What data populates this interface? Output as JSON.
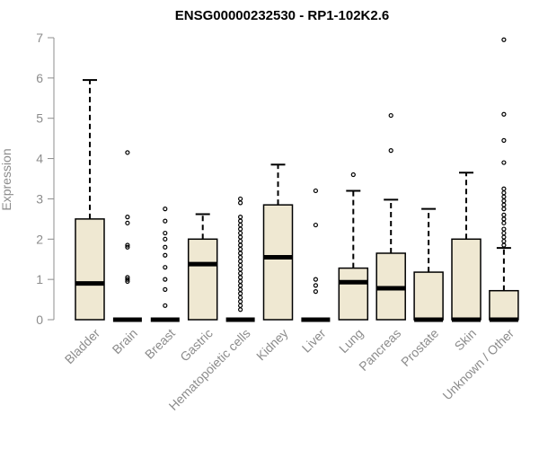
{
  "chart_data": {
    "type": "boxplot",
    "title": "ENSG00000232530 - RP1-102K2.6",
    "xlabel": "",
    "ylabel": "Expression",
    "ylim": [
      0,
      7
    ],
    "yticks": [
      "0",
      "1",
      "2",
      "3",
      "4",
      "5",
      "6",
      "7"
    ],
    "grid": false,
    "colors": {
      "box_fill": "#efe8d2",
      "median": "#000000",
      "axis": "#8c8c8c",
      "title": "#000000"
    },
    "categories": [
      "Bladder",
      "Brain",
      "Breast",
      "Gastric",
      "Hematopoietic cells",
      "Kidney",
      "Liver",
      "Lung",
      "Pancreas",
      "Prostate",
      "Skin",
      "Unknown / Other"
    ],
    "boxes": [
      {
        "min": 0,
        "q1": 0,
        "median": 0.9,
        "q3": 2.5,
        "max": 5.95,
        "outliers": []
      },
      {
        "min": 0,
        "q1": 0,
        "median": 0,
        "q3": 0,
        "max": 0,
        "outliers": [
          0.95,
          1.0,
          1.05,
          1.8,
          1.85,
          2.4,
          2.55,
          4.15
        ]
      },
      {
        "min": 0,
        "q1": 0,
        "median": 0,
        "q3": 0,
        "max": 0,
        "outliers": [
          0.35,
          0.75,
          1.0,
          1.3,
          1.6,
          1.8,
          2.0,
          2.15,
          2.45,
          2.75
        ]
      },
      {
        "min": 0,
        "q1": 0,
        "median": 1.38,
        "q3": 2.0,
        "max": 2.62,
        "outliers": []
      },
      {
        "min": 0,
        "q1": 0,
        "median": 0,
        "q3": 0,
        "max": 0,
        "outliers": [
          0.25,
          0.35,
          0.45,
          0.55,
          0.65,
          0.75,
          0.85,
          0.95,
          1.05,
          1.15,
          1.25,
          1.35,
          1.45,
          1.55,
          1.65,
          1.75,
          1.85,
          1.95,
          2.05,
          2.15,
          2.25,
          2.35,
          2.45,
          2.55,
          2.9,
          3.0
        ]
      },
      {
        "min": 0,
        "q1": 0,
        "median": 1.55,
        "q3": 2.85,
        "max": 3.85,
        "outliers": []
      },
      {
        "min": 0,
        "q1": 0,
        "median": 0,
        "q3": 0,
        "max": 0,
        "outliers": [
          0.7,
          0.85,
          1.0,
          2.35,
          3.2
        ]
      },
      {
        "min": 0,
        "q1": 0.0,
        "median": 0.93,
        "q3": 1.28,
        "max": 3.2,
        "outliers": [
          3.6
        ]
      },
      {
        "min": 0,
        "q1": 0.0,
        "median": 0.78,
        "q3": 1.65,
        "max": 2.98,
        "outliers": [
          4.2,
          5.07
        ]
      },
      {
        "min": 0,
        "q1": 0,
        "median": 0,
        "q3": 1.18,
        "max": 2.75,
        "outliers": []
      },
      {
        "min": 0,
        "q1": 0,
        "median": 0,
        "q3": 2.0,
        "max": 3.65,
        "outliers": []
      },
      {
        "min": 0,
        "q1": 0,
        "median": 0,
        "q3": 0.72,
        "max": 1.78,
        "outliers": [
          1.85,
          1.95,
          2.05,
          2.15,
          2.25,
          2.4,
          2.5,
          2.6,
          2.75,
          2.85,
          2.95,
          3.05,
          3.15,
          3.25,
          3.9,
          4.45,
          5.1,
          6.95
        ]
      }
    ]
  }
}
